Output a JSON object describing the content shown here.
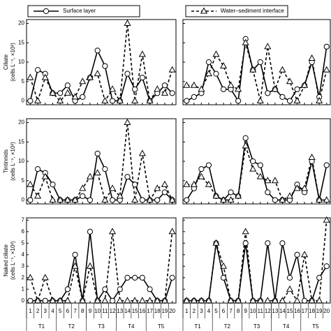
{
  "legend": [
    {
      "name": "Surface layer",
      "line": "solid",
      "marker": "circle"
    },
    {
      "name": "Water–sediment interface",
      "line": "dashed",
      "marker": "triangle"
    }
  ],
  "chart_data": [
    {
      "type": "line",
      "ylabel": [
        "Ciliate",
        "(cells L⁻¹, ×10²)"
      ],
      "ylim": [
        -1,
        21
      ],
      "yticks": [
        0,
        5,
        10,
        15,
        20
      ],
      "series": [
        {
          "line": "solid",
          "marker": "circle",
          "values": [
            0,
            8,
            7,
            2,
            2,
            4,
            0,
            1,
            6,
            13,
            9,
            0,
            0,
            7,
            3,
            6,
            0,
            2,
            4,
            2
          ]
        },
        {
          "line": "dashed",
          "marker": "triangle",
          "values": [
            6,
            0,
            6,
            2,
            0,
            2,
            1,
            5,
            6,
            7,
            0,
            3,
            0,
            20,
            0,
            12,
            0,
            3,
            2,
            8
          ]
        }
      ]
    },
    {
      "type": "line",
      "ylim": [
        -1,
        21
      ],
      "yticks": [
        0,
        5,
        10,
        15,
        20
      ],
      "series": [
        {
          "line": "solid",
          "marker": "circle",
          "values": [
            0,
            1,
            2,
            10,
            7,
            3,
            3,
            0,
            16,
            8,
            10,
            2,
            3,
            1,
            0,
            3,
            4,
            10,
            1,
            14
          ]
        },
        {
          "line": "dashed",
          "marker": "triangle",
          "values": [
            4,
            4,
            3,
            7,
            12,
            9,
            4,
            3,
            15,
            8,
            0,
            14,
            3,
            8,
            5,
            0,
            4,
            11,
            0,
            8
          ]
        }
      ]
    },
    {
      "type": "line",
      "ylabel": [
        "Tintinnids",
        "(cells L⁻¹, ×10²)"
      ],
      "ylim": [
        -1,
        21
      ],
      "yticks": [
        0,
        5,
        10,
        15,
        20
      ],
      "series": [
        {
          "line": "solid",
          "marker": "circle",
          "values": [
            0,
            8,
            7,
            4,
            0,
            0,
            0,
            1,
            0,
            12,
            8,
            0,
            0,
            6,
            4,
            0,
            0,
            0,
            2,
            0
          ]
        },
        {
          "line": "dashed",
          "marker": "triangle",
          "values": [
            4,
            1,
            6,
            0,
            0,
            0,
            0,
            3,
            6,
            7,
            0,
            3,
            1,
            20,
            0,
            12,
            0,
            3,
            4,
            0
          ]
        }
      ]
    },
    {
      "type": "line",
      "ylim": [
        -1,
        21
      ],
      "yticks": [
        0,
        5,
        10,
        15,
        20
      ],
      "series": [
        {
          "line": "solid",
          "marker": "circle",
          "values": [
            0,
            3,
            8,
            9,
            1,
            0,
            2,
            1,
            16,
            10,
            9,
            2,
            0,
            0,
            0,
            4,
            2,
            10,
            0,
            9
          ]
        },
        {
          "line": "dashed",
          "marker": "triangle",
          "values": [
            4,
            4,
            6,
            4,
            1,
            0,
            0,
            1,
            14,
            8,
            6,
            5,
            5,
            0,
            1,
            3,
            3,
            11,
            0,
            0
          ]
        }
      ]
    },
    {
      "type": "line",
      "ylabel": [
        "Naked ciliate",
        "(cells L⁻¹, ×10²)"
      ],
      "ylim": [
        -0.2,
        7.2
      ],
      "yticks": [
        0,
        1,
        2,
        3,
        4,
        5,
        6,
        7
      ],
      "categories": [
        "1",
        "2",
        "3",
        "4",
        "5",
        "6",
        "7",
        "8",
        "9",
        "10",
        "11",
        "12",
        "13",
        "14",
        "15",
        "16",
        "17",
        "18",
        "19",
        "20"
      ],
      "groups": [
        "T1",
        "T2",
        "T3",
        "T4",
        "T5"
      ],
      "series": [
        {
          "line": "solid",
          "marker": "circle",
          "values": [
            0,
            0,
            0,
            0,
            0,
            1,
            4,
            0,
            6,
            0,
            1,
            0,
            1,
            2,
            2,
            2,
            1,
            0,
            0,
            2
          ]
        },
        {
          "line": "dashed",
          "marker": "triangle",
          "values": [
            2,
            0,
            2,
            0,
            0,
            0,
            3,
            0,
            3,
            0,
            0,
            6,
            0,
            0,
            0,
            0,
            0,
            0,
            0,
            6
          ]
        }
      ]
    },
    {
      "type": "line",
      "ylim": [
        -0.2,
        7.2
      ],
      "yticks": [
        0,
        1,
        2,
        3,
        4,
        5,
        6,
        7
      ],
      "categories": [
        "1",
        "2",
        "3",
        "4",
        "5",
        "6",
        "7",
        "8",
        "9",
        "10",
        "11",
        "12",
        "13",
        "14",
        "15",
        "16",
        "17",
        "18",
        "19",
        "20"
      ],
      "groups": [
        "T1",
        "T2",
        "T3",
        "T4",
        "T5"
      ],
      "series": [
        {
          "line": "solid",
          "marker": "circle",
          "values": [
            0,
            0,
            0,
            0,
            5,
            2,
            0,
            0,
            5,
            0,
            0,
            5,
            0,
            5,
            2,
            4,
            0,
            0,
            2,
            3
          ]
        },
        {
          "line": "dashed",
          "marker": "triangle",
          "values": [
            0,
            0,
            0,
            0,
            5,
            3,
            0,
            0,
            6,
            0,
            0,
            0,
            0,
            0,
            1,
            0,
            4,
            0,
            0,
            7
          ]
        }
      ]
    }
  ]
}
